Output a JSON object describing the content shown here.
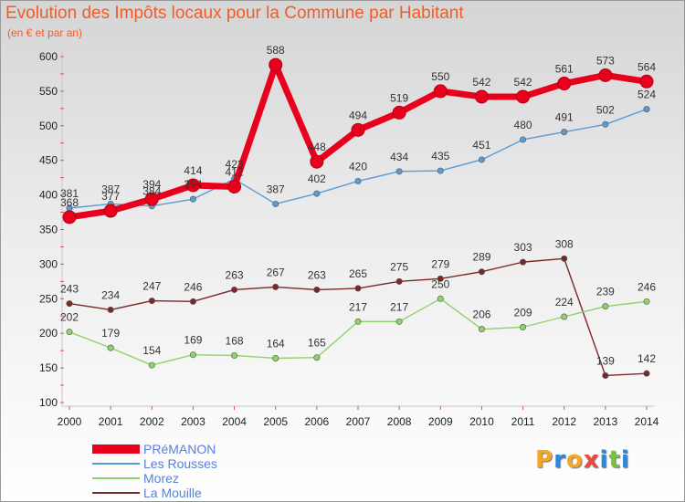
{
  "header": {
    "title": "Evolution des Impôts locaux pour la Commune par Habitant",
    "subtitle": "(en € et par an)"
  },
  "brand": {
    "letters": [
      "P",
      "r",
      "o",
      "x",
      "i",
      "t",
      "i"
    ],
    "colors": [
      "#f5a623",
      "#2e86de",
      "#f5a623",
      "#e74c3c",
      "#2e86de",
      "#7ac143",
      "#2e86de"
    ]
  },
  "chart_data": {
    "type": "line",
    "x": [
      "2000",
      "2001",
      "2002",
      "2003",
      "2004",
      "2005",
      "2006",
      "2007",
      "2008",
      "2009",
      "2010",
      "2011",
      "2012",
      "2013",
      "2014"
    ],
    "ylim": [
      100,
      600
    ],
    "yticks": [
      100,
      150,
      200,
      250,
      300,
      350,
      400,
      450,
      500,
      550,
      600
    ],
    "grid": false,
    "legend_position": "bottom-left",
    "series": [
      {
        "name": "PRéMANON",
        "color": "#e8001c",
        "values": [
          368,
          377,
          394,
          414,
          412,
          588,
          448,
          494,
          519,
          550,
          542,
          542,
          561,
          573,
          564
        ]
      },
      {
        "name": "Les Rousses",
        "color": "#5b9bd5",
        "values": [
          381,
          387,
          384,
          394,
          423,
          387,
          402,
          420,
          434,
          435,
          451,
          480,
          491,
          502,
          524
        ]
      },
      {
        "name": "Morez",
        "color": "#8fd16a",
        "values": [
          202,
          179,
          154,
          169,
          168,
          164,
          165,
          217,
          217,
          250,
          206,
          209,
          224,
          239,
          246
        ]
      },
      {
        "name": "La Mouille",
        "color": "#7a2929",
        "values": [
          243,
          234,
          247,
          246,
          263,
          267,
          263,
          265,
          275,
          279,
          289,
          303,
          308,
          139,
          142
        ]
      }
    ]
  }
}
